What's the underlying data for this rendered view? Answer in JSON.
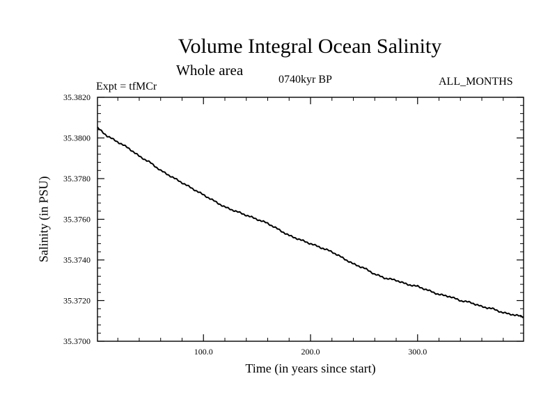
{
  "header": {
    "left": "Expt = tfMCr",
    "center": "0740kyr BP",
    "right": "ALL_MONTHS"
  },
  "chart_data": {
    "type": "line",
    "title": "Volume Integral Ocean Salinity",
    "subtitle": "Whole area",
    "xlabel": "Time (in years since start)",
    "ylabel": "Salinity (in PSU)",
    "xlim": [
      1,
      399
    ],
    "ylim": [
      35.37,
      35.382
    ],
    "x_ticks": [
      100,
      200,
      300
    ],
    "x_tick_labels": [
      "100.0",
      "200.0",
      "300.0"
    ],
    "y_ticks": [
      35.37,
      35.372,
      35.374,
      35.376,
      35.378,
      35.38,
      35.382
    ],
    "y_tick_labels": [
      "35.3700",
      "35.3720",
      "35.3740",
      "35.3760",
      "35.3780",
      "35.3800",
      "35.3820"
    ],
    "grid": false,
    "line_color": "#000000",
    "series": [
      {
        "x": [
          1,
          10,
          20,
          30,
          40,
          50,
          60,
          70,
          80,
          90,
          100,
          110,
          120,
          130,
          140,
          150,
          160,
          170,
          180,
          190,
          200,
          210,
          220,
          230,
          240,
          250,
          260,
          270,
          280,
          290,
          300,
          310,
          320,
          330,
          340,
          350,
          360,
          370,
          380,
          390,
          399
        ],
        "y": [
          35.3805,
          35.3801,
          35.3798,
          35.3795,
          35.3791,
          35.3788,
          35.3784,
          35.3781,
          35.3778,
          35.3775,
          35.3772,
          35.3769,
          35.3766,
          35.3764,
          35.3762,
          35.376,
          35.3758,
          35.3755,
          35.3752,
          35.375,
          35.3748,
          35.3746,
          35.3744,
          35.3741,
          35.3738,
          35.3736,
          35.3733,
          35.3731,
          35.373,
          35.3728,
          35.3727,
          35.3725,
          35.3723,
          35.3722,
          35.372,
          35.3719,
          35.3717,
          35.3716,
          35.3714,
          35.3713,
          35.3712
        ]
      }
    ]
  }
}
